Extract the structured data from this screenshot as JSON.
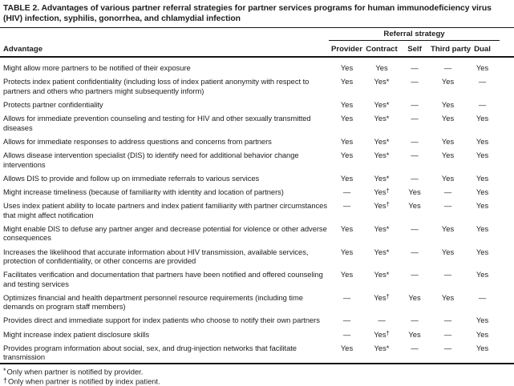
{
  "title": "TABLE 2. Advantages of various partner referral strategies for partner services programs for human immunodeficiency virus (HIV) infection, syphilis, gonorrhea, and chlamydial infection",
  "table": {
    "group_header": "Referral strategy",
    "row_header": "Advantage",
    "columns": [
      "Provider",
      "Contract",
      "Self",
      "Third party",
      "Dual"
    ],
    "empty_value": "—",
    "rows": [
      {
        "advantage": "Might allow more partners to be notified of their exposure",
        "values": [
          "Yes",
          "Yes",
          "—",
          "—",
          "Yes"
        ]
      },
      {
        "advantage": "Protects index patient confidentiality (including loss of index patient anonymity with respect to partners and others who partners might subsequently inform)",
        "values": [
          "Yes",
          "Yes*",
          "—",
          "Yes",
          "—"
        ]
      },
      {
        "advantage": "Protects partner confidentiality",
        "values": [
          "Yes",
          "Yes*",
          "—",
          "Yes",
          "—"
        ]
      },
      {
        "advantage": "Allows for immediate prevention counseling and testing for HIV and other sexually transmitted diseases",
        "values": [
          "Yes",
          "Yes*",
          "—",
          "Yes",
          "Yes"
        ]
      },
      {
        "advantage": "Allows for immediate responses to address questions and concerns from partners",
        "values": [
          "Yes",
          "Yes*",
          "—",
          "Yes",
          "Yes"
        ]
      },
      {
        "advantage": "Allows disease intervention specialist (DIS) to identify need for additional behavior change interventions",
        "values": [
          "Yes",
          "Yes*",
          "—",
          "Yes",
          "Yes"
        ]
      },
      {
        "advantage": "Allows DIS to provide and follow up on immediate referrals to various services",
        "values": [
          "Yes",
          "Yes*",
          "—",
          "Yes",
          "Yes"
        ]
      },
      {
        "advantage": "Might increase timeliness (because of familiarity with identity and location of partners)",
        "values": [
          "—",
          "Yes†",
          "Yes",
          "—",
          "Yes"
        ]
      },
      {
        "advantage": "Uses index patient ability to locate partners and index patient familiarity with partner circumstances that might affect notification",
        "values": [
          "—",
          "Yes†",
          "Yes",
          "—",
          "Yes"
        ]
      },
      {
        "advantage": "Might enable DIS to defuse any partner anger and decrease potential for violence or other adverse consequences",
        "values": [
          "Yes",
          "Yes*",
          "—",
          "Yes",
          "Yes"
        ]
      },
      {
        "advantage": "Increases the likelihood that accurate information about HIV transmission, available services, protection of confidentiality, or other concerns are provided",
        "values": [
          "Yes",
          "Yes*",
          "—",
          "Yes",
          "Yes"
        ]
      },
      {
        "advantage": "Facilitates verification and documentation that partners have been notified and offered counseling and testing services",
        "values": [
          "Yes",
          "Yes*",
          "—",
          "—",
          "Yes"
        ]
      },
      {
        "advantage": "Optimizes financial and health department personnel resource requirements (including time demands on program staff members)",
        "values": [
          "—",
          "Yes†",
          "Yes",
          "Yes",
          "—"
        ]
      },
      {
        "advantage": "Provides direct and immediate support for index patients who choose to notify their own partners",
        "values": [
          "—",
          "—",
          "—",
          "—",
          "Yes"
        ]
      },
      {
        "advantage": "Might increase index patient disclosure skills",
        "values": [
          "—",
          "Yes†",
          "Yes",
          "—",
          "Yes"
        ]
      },
      {
        "advantage": "Provides program information about social, sex, and drug-injection networks that facilitate transmission",
        "values": [
          "Yes",
          "Yes*",
          "—",
          "—",
          "Yes"
        ]
      }
    ]
  },
  "footnotes": [
    {
      "marker": "*",
      "text": "Only when partner is notified by provider."
    },
    {
      "marker": "†",
      "text": "Only when partner is notified by index patient."
    }
  ]
}
